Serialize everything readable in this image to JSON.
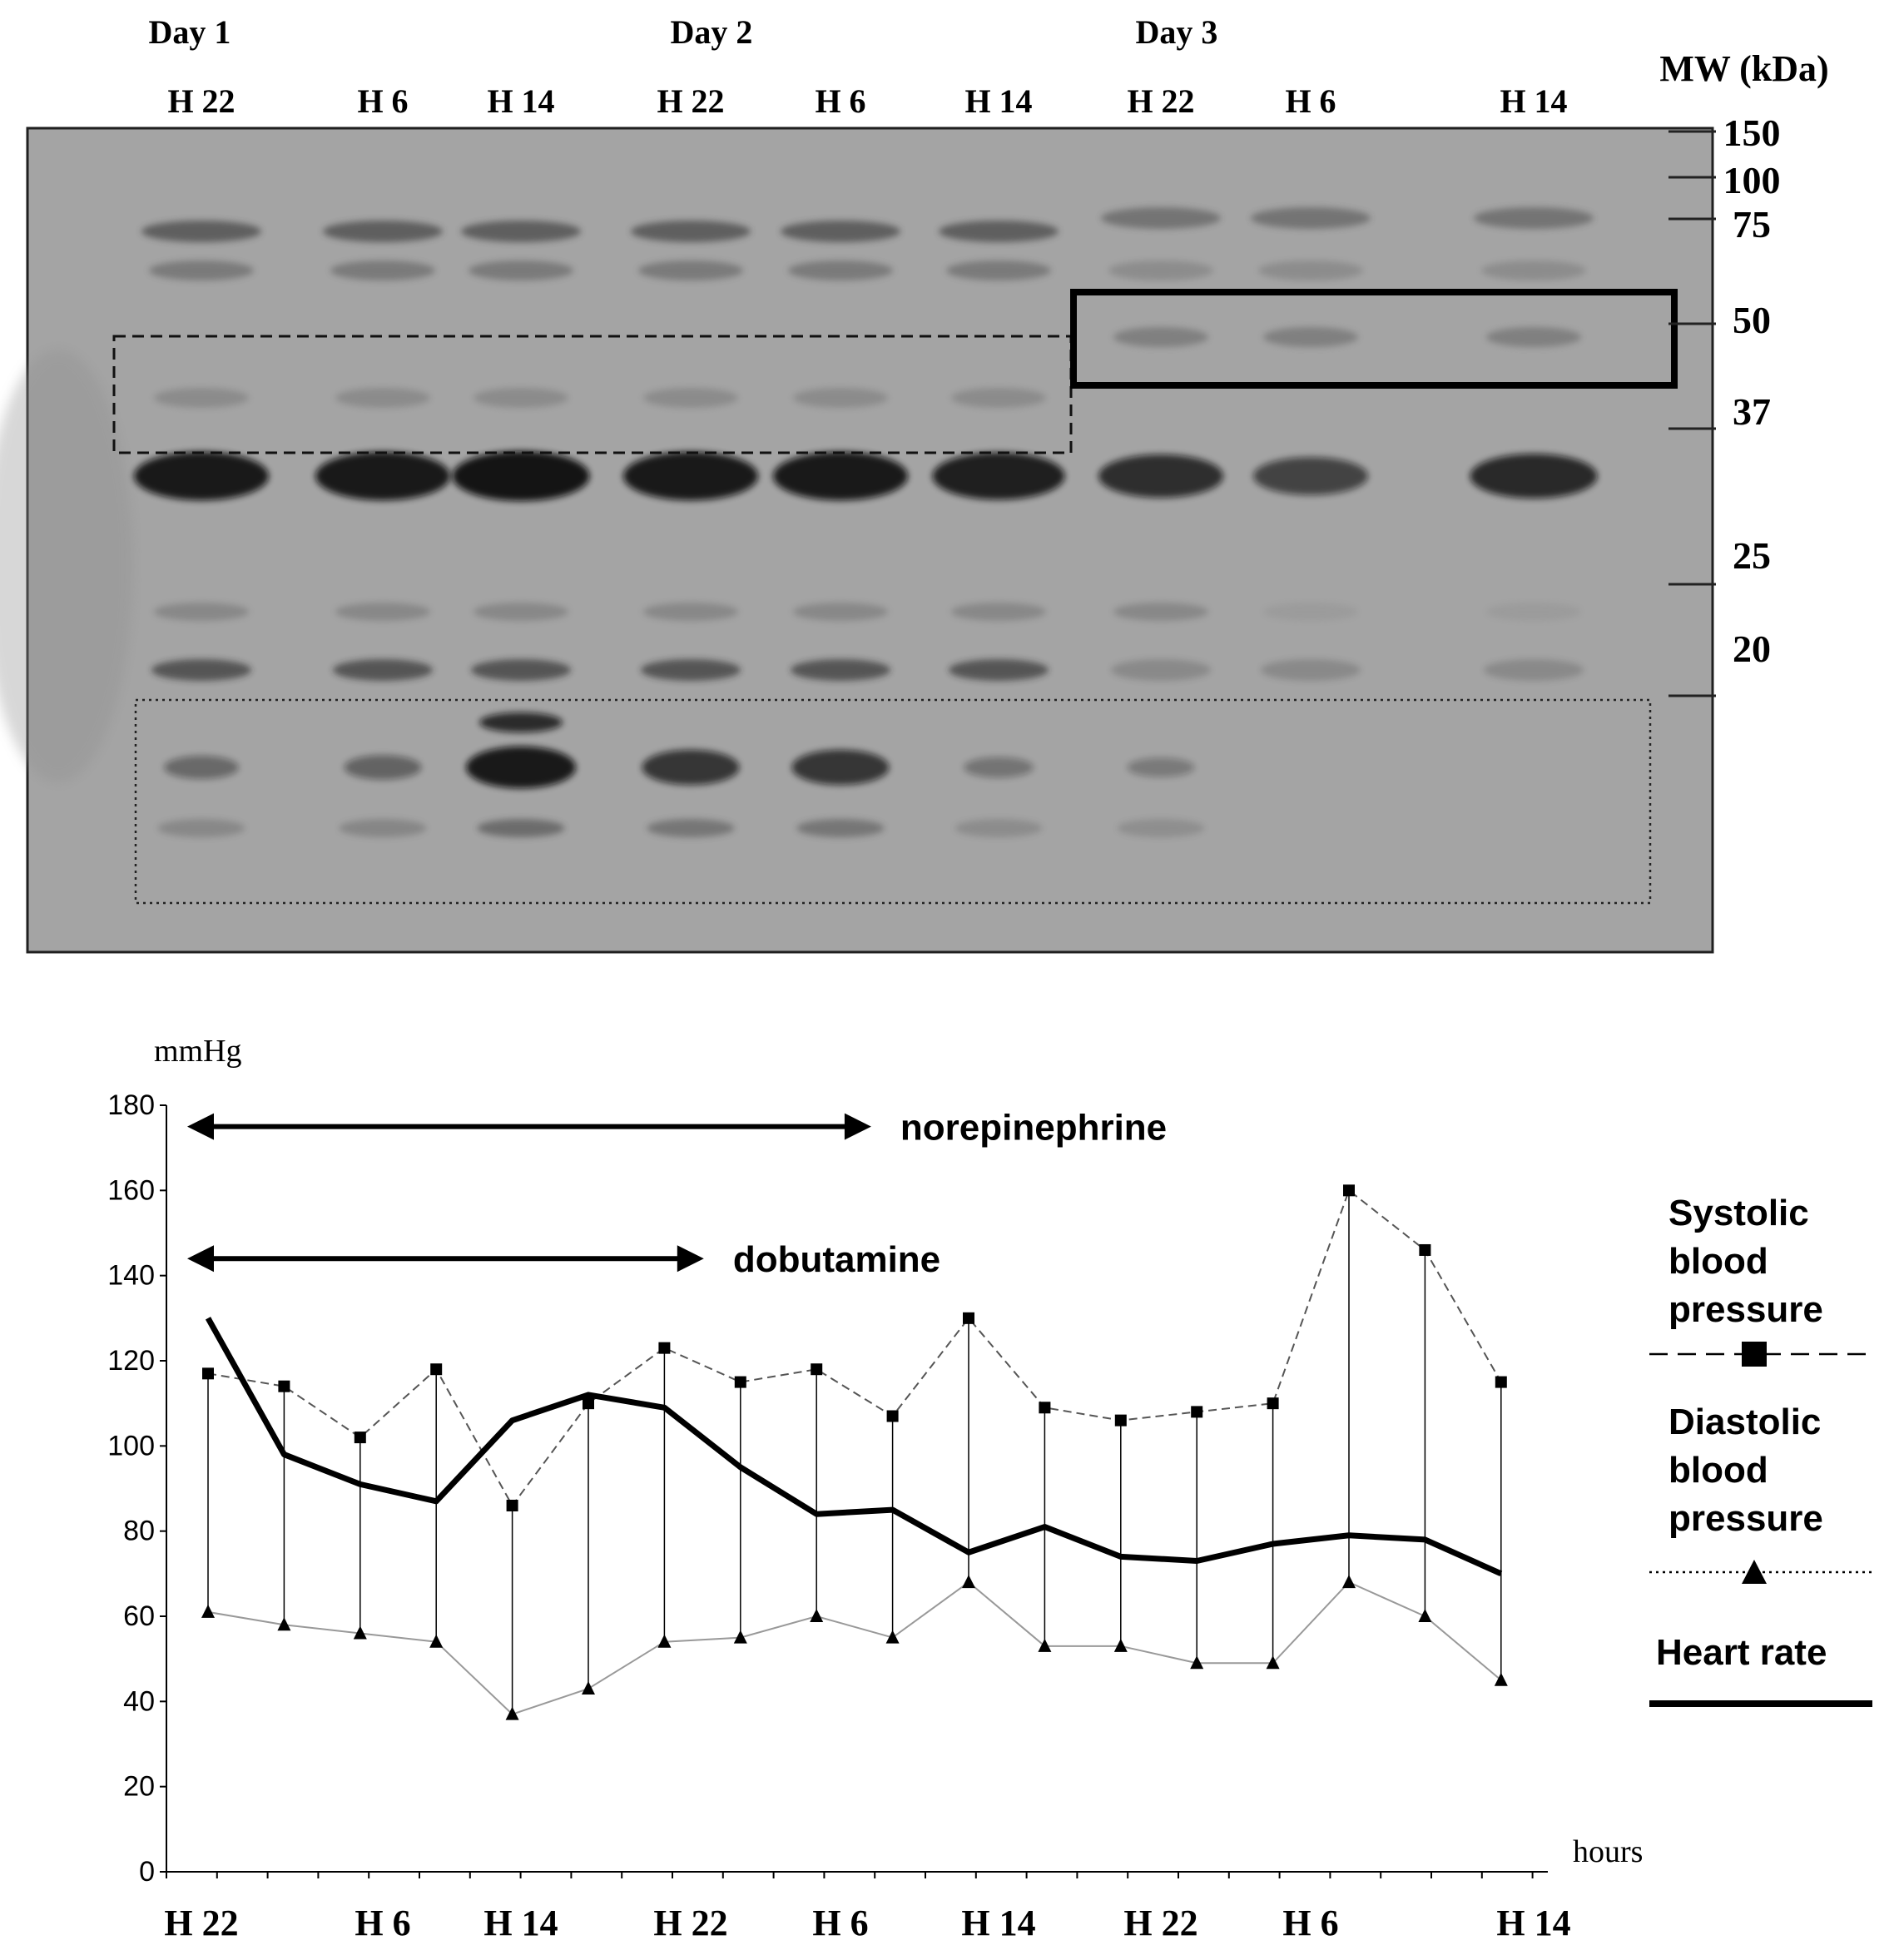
{
  "gel": {
    "day_labels": [
      "Day 1",
      "Day 2",
      "Day 3"
    ],
    "lane_labels": [
      "H 22",
      "H 6",
      "H 14",
      "H 22",
      "H 6",
      "H 14",
      "H 22",
      "H 6",
      "H 14"
    ],
    "mw_title": "MW (kDa)",
    "mw_markers": [
      "150",
      "100",
      "75",
      "50",
      "37",
      "25",
      "20"
    ],
    "main_band_intensity": [
      0.95,
      0.95,
      1.0,
      0.95,
      0.95,
      0.9,
      0.75,
      0.55,
      0.8
    ],
    "low_band_intensity": [
      0.25,
      0.3,
      0.95,
      0.7,
      0.7,
      0.15,
      0.1,
      0.0,
      0.0
    ]
  },
  "chart_data": {
    "type": "line",
    "ylabel": "mmHg",
    "xlabel": "hours",
    "ylim": [
      0,
      180
    ],
    "yticks": [
      0,
      20,
      40,
      60,
      80,
      100,
      120,
      140,
      160,
      180
    ],
    "x_tick_labels": [
      "H 22",
      "H 6",
      "H 14",
      "H 22",
      "H 6",
      "H 14",
      "H 22",
      "H 6",
      "H 14"
    ],
    "x": [
      0,
      1,
      2,
      3,
      4,
      5,
      6,
      7,
      8,
      9,
      10,
      11,
      12,
      13,
      14,
      15,
      16,
      17
    ],
    "series": [
      {
        "name": "Systolic blood pressure",
        "values": [
          117,
          114,
          102,
          118,
          86,
          110,
          123,
          115,
          118,
          107,
          130,
          109,
          106,
          108,
          110,
          160,
          146,
          115
        ]
      },
      {
        "name": "Diastolic blood pressure",
        "values": [
          61,
          58,
          56,
          54,
          37,
          43,
          54,
          55,
          60,
          55,
          68,
          53,
          53,
          49,
          49,
          68,
          60,
          45
        ]
      },
      {
        "name": "Heart rate",
        "values": [
          130,
          98,
          91,
          87,
          106,
          112,
          109,
          95,
          84,
          85,
          75,
          81,
          74,
          73,
          77,
          79,
          78,
          70
        ]
      }
    ],
    "annotations": [
      {
        "text": "norepinephrine",
        "from_x": 0,
        "to_x": 8.5,
        "y": 175
      },
      {
        "text": "dobutamine",
        "from_x": 0,
        "to_x": 6.3,
        "y": 144
      }
    ],
    "legend": "right"
  }
}
